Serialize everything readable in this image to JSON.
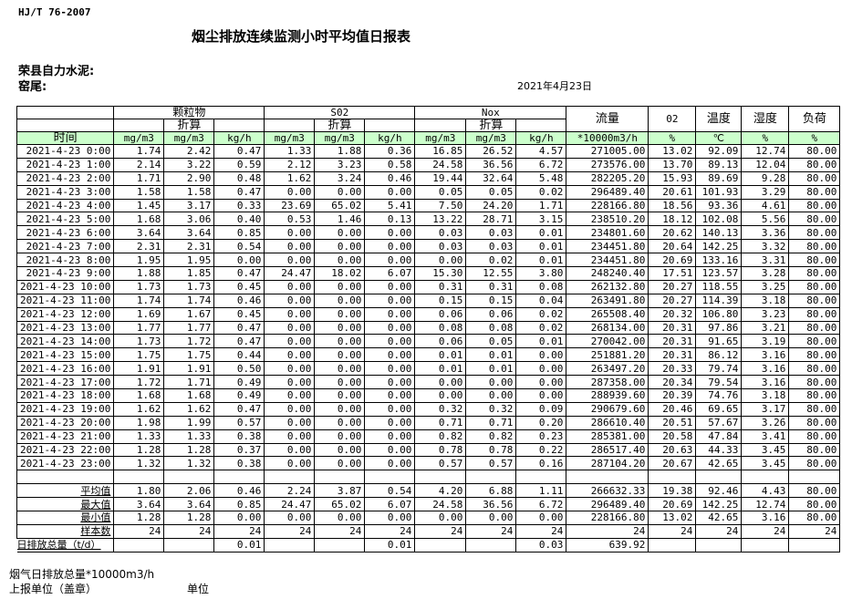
{
  "standard": "HJ/T  76-2007",
  "title": "烟尘排放连续监测小时平均值日报表",
  "company": "荣县自力水泥:",
  "kiln": "窑尾:",
  "date": "2021年4月23日",
  "header": {
    "pm": "颗粒物",
    "so2": "S02",
    "nox": "Nox",
    "converted": "折算",
    "flow": "流量",
    "o2": "02",
    "temp": "温度",
    "humidity": "湿度",
    "load": "负荷",
    "time": "时间",
    "units": [
      "mg/m3",
      "mg/m3",
      "kg/h",
      "mg/m3",
      "mg/m3",
      "kg/h",
      "mg/m3",
      "mg/m3",
      "kg/h",
      "*10000m3/h",
      "%",
      "℃",
      "%",
      "%"
    ]
  },
  "rows": [
    [
      "2021-4-23 0:00",
      "1.74",
      "2.42",
      "0.47",
      "1.33",
      "1.88",
      "0.36",
      "16.85",
      "26.52",
      "4.57",
      "271005.00",
      "13.02",
      "92.09",
      "12.74",
      "80.00"
    ],
    [
      "2021-4-23 1:00",
      "2.14",
      "3.22",
      "0.59",
      "2.12",
      "3.23",
      "0.58",
      "24.58",
      "36.56",
      "6.72",
      "273576.00",
      "13.70",
      "89.13",
      "12.04",
      "80.00"
    ],
    [
      "2021-4-23 2:00",
      "1.71",
      "2.90",
      "0.48",
      "1.62",
      "3.24",
      "0.46",
      "19.44",
      "32.64",
      "5.48",
      "282205.20",
      "15.93",
      "89.69",
      "9.28",
      "80.00"
    ],
    [
      "2021-4-23 3:00",
      "1.58",
      "1.58",
      "0.47",
      "0.00",
      "0.00",
      "0.00",
      "0.05",
      "0.05",
      "0.02",
      "296489.40",
      "20.61",
      "101.93",
      "3.29",
      "80.00"
    ],
    [
      "2021-4-23 4:00",
      "1.45",
      "3.17",
      "0.33",
      "23.69",
      "65.02",
      "5.41",
      "7.50",
      "24.20",
      "1.71",
      "228166.80",
      "18.56",
      "93.36",
      "4.61",
      "80.00"
    ],
    [
      "2021-4-23 5:00",
      "1.68",
      "3.06",
      "0.40",
      "0.53",
      "1.46",
      "0.13",
      "13.22",
      "28.71",
      "3.15",
      "238510.20",
      "18.12",
      "102.08",
      "5.56",
      "80.00"
    ],
    [
      "2021-4-23 6:00",
      "3.64",
      "3.64",
      "0.85",
      "0.00",
      "0.00",
      "0.00",
      "0.03",
      "0.03",
      "0.01",
      "234801.60",
      "20.62",
      "140.13",
      "3.36",
      "80.00"
    ],
    [
      "2021-4-23 7:00",
      "2.31",
      "2.31",
      "0.54",
      "0.00",
      "0.00",
      "0.00",
      "0.03",
      "0.03",
      "0.01",
      "234451.80",
      "20.64",
      "142.25",
      "3.32",
      "80.00"
    ],
    [
      "2021-4-23 8:00",
      "1.95",
      "1.95",
      "0.00",
      "0.00",
      "0.00",
      "0.00",
      "0.00",
      "0.02",
      "0.01",
      "234451.80",
      "20.69",
      "133.16",
      "3.31",
      "80.00"
    ],
    [
      "2021-4-23 9:00",
      "1.88",
      "1.85",
      "0.47",
      "24.47",
      "18.02",
      "6.07",
      "15.30",
      "12.55",
      "3.80",
      "248240.40",
      "17.51",
      "123.57",
      "3.28",
      "80.00"
    ],
    [
      "2021-4-23 10:00",
      "1.73",
      "1.73",
      "0.45",
      "0.00",
      "0.00",
      "0.00",
      "0.31",
      "0.31",
      "0.08",
      "262132.80",
      "20.27",
      "118.55",
      "3.25",
      "80.00"
    ],
    [
      "2021-4-23 11:00",
      "1.74",
      "1.74",
      "0.46",
      "0.00",
      "0.00",
      "0.00",
      "0.15",
      "0.15",
      "0.04",
      "263491.80",
      "20.27",
      "114.39",
      "3.18",
      "80.00"
    ],
    [
      "2021-4-23 12:00",
      "1.69",
      "1.67",
      "0.45",
      "0.00",
      "0.00",
      "0.00",
      "0.06",
      "0.06",
      "0.02",
      "265508.40",
      "20.32",
      "106.80",
      "3.23",
      "80.00"
    ],
    [
      "2021-4-23 13:00",
      "1.77",
      "1.77",
      "0.47",
      "0.00",
      "0.00",
      "0.00",
      "0.08",
      "0.08",
      "0.02",
      "268134.00",
      "20.31",
      "97.86",
      "3.21",
      "80.00"
    ],
    [
      "2021-4-23 14:00",
      "1.73",
      "1.72",
      "0.47",
      "0.00",
      "0.00",
      "0.00",
      "0.06",
      "0.05",
      "0.01",
      "270042.00",
      "20.31",
      "91.65",
      "3.19",
      "80.00"
    ],
    [
      "2021-4-23 15:00",
      "1.75",
      "1.75",
      "0.44",
      "0.00",
      "0.00",
      "0.00",
      "0.01",
      "0.01",
      "0.00",
      "251881.20",
      "20.31",
      "86.12",
      "3.16",
      "80.00"
    ],
    [
      "2021-4-23 16:00",
      "1.91",
      "1.91",
      "0.50",
      "0.00",
      "0.00",
      "0.00",
      "0.01",
      "0.01",
      "0.00",
      "263497.20",
      "20.33",
      "79.74",
      "3.16",
      "80.00"
    ],
    [
      "2021-4-23 17:00",
      "1.72",
      "1.71",
      "0.49",
      "0.00",
      "0.00",
      "0.00",
      "0.00",
      "0.00",
      "0.00",
      "287358.00",
      "20.34",
      "79.54",
      "3.16",
      "80.00"
    ],
    [
      "2021-4-23 18:00",
      "1.68",
      "1.68",
      "0.49",
      "0.00",
      "0.00",
      "0.00",
      "0.00",
      "0.00",
      "0.00",
      "288939.60",
      "20.39",
      "74.76",
      "3.18",
      "80.00"
    ],
    [
      "2021-4-23 19:00",
      "1.62",
      "1.62",
      "0.47",
      "0.00",
      "0.00",
      "0.00",
      "0.32",
      "0.32",
      "0.09",
      "290679.60",
      "20.46",
      "69.65",
      "3.17",
      "80.00"
    ],
    [
      "2021-4-23 20:00",
      "1.98",
      "1.99",
      "0.57",
      "0.00",
      "0.00",
      "0.00",
      "0.71",
      "0.71",
      "0.20",
      "286610.40",
      "20.51",
      "57.67",
      "3.26",
      "80.00"
    ],
    [
      "2021-4-23 21:00",
      "1.33",
      "1.33",
      "0.38",
      "0.00",
      "0.00",
      "0.00",
      "0.82",
      "0.82",
      "0.23",
      "285381.00",
      "20.58",
      "47.84",
      "3.41",
      "80.00"
    ],
    [
      "2021-4-23 22:00",
      "1.28",
      "1.28",
      "0.37",
      "0.00",
      "0.00",
      "0.00",
      "0.78",
      "0.78",
      "0.22",
      "286517.40",
      "20.63",
      "44.33",
      "3.45",
      "80.00"
    ],
    [
      "2021-4-23 23:00",
      "1.32",
      "1.32",
      "0.38",
      "0.00",
      "0.00",
      "0.00",
      "0.57",
      "0.57",
      "0.16",
      "287104.20",
      "20.67",
      "42.65",
      "3.45",
      "80.00"
    ]
  ],
  "stats": [
    [
      "平均值",
      "1.80",
      "2.06",
      "0.46",
      "2.24",
      "3.87",
      "0.54",
      "4.20",
      "6.88",
      "1.11",
      "266632.33",
      "19.38",
      "92.46",
      "4.43",
      "80.00"
    ],
    [
      "最大值",
      "3.64",
      "3.64",
      "0.85",
      "24.47",
      "65.02",
      "6.07",
      "24.58",
      "36.56",
      "6.72",
      "296489.40",
      "20.69",
      "142.25",
      "12.74",
      "80.00"
    ],
    [
      "最小值",
      "1.28",
      "1.28",
      "0.00",
      "0.00",
      "0.00",
      "0.00",
      "0.00",
      "0.00",
      "0.00",
      "228166.80",
      "13.02",
      "42.65",
      "3.16",
      "80.00"
    ],
    [
      "样本数",
      "24",
      "24",
      "24",
      "24",
      "24",
      "24",
      "24",
      "24",
      "24",
      "24",
      "24",
      "24",
      "24",
      "24"
    ]
  ],
  "daily_total": [
    "日排放总量（t/d）",
    "",
    "",
    "0.01",
    "",
    "",
    "0.01",
    "",
    "",
    "0.03",
    "639.92",
    "",
    "",
    "",
    ""
  ],
  "footer": {
    "gas_total": "烟气日排放总量*10000m3/h",
    "reporting_unit": "上报单位（盖章）",
    "unit": "单位"
  }
}
